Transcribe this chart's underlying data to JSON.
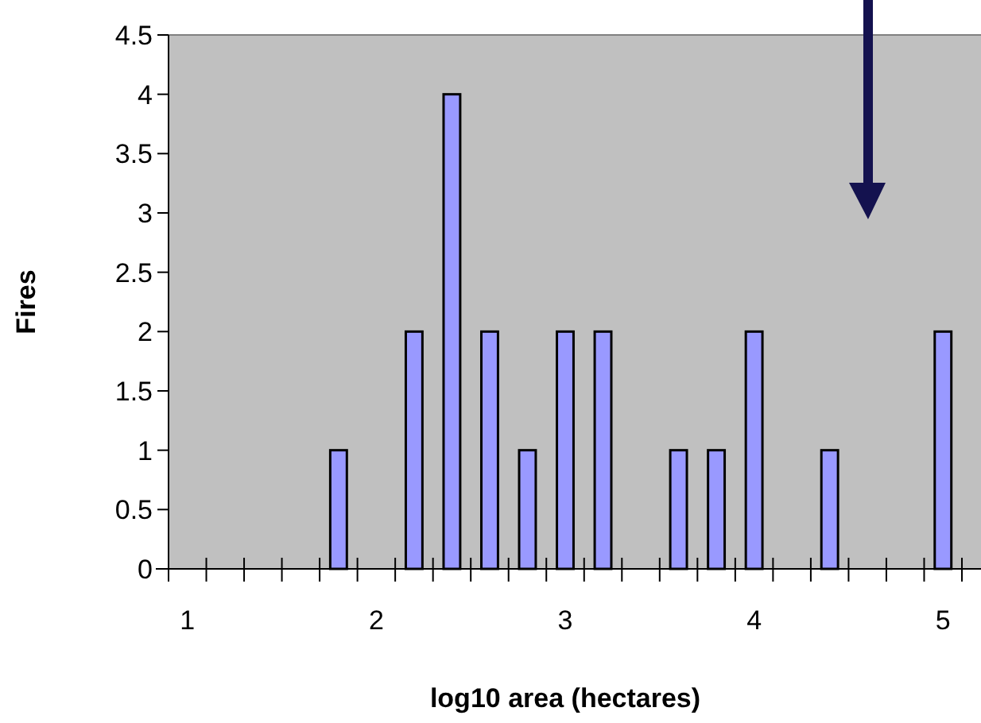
{
  "chart_data": {
    "type": "bar",
    "xlabel": "log10 area (hectares)",
    "ylabel": "Fires",
    "categories": [
      "1",
      null,
      null,
      null,
      null,
      "2",
      null,
      null,
      null,
      null,
      "3",
      null,
      null,
      null,
      null,
      "4",
      null,
      null,
      null,
      null,
      "5"
    ],
    "values": [
      0,
      0,
      0,
      0,
      1,
      0,
      2,
      4,
      2,
      1,
      2,
      2,
      0,
      1,
      1,
      2,
      0,
      1,
      0,
      0,
      2
    ],
    "color": "#9999ff",
    "ylim": [
      0,
      4.5
    ],
    "yticks": [
      0,
      0.5,
      1,
      1.5,
      2,
      2.5,
      3,
      3.5,
      4,
      4.5
    ],
    "grid": false
  }
}
